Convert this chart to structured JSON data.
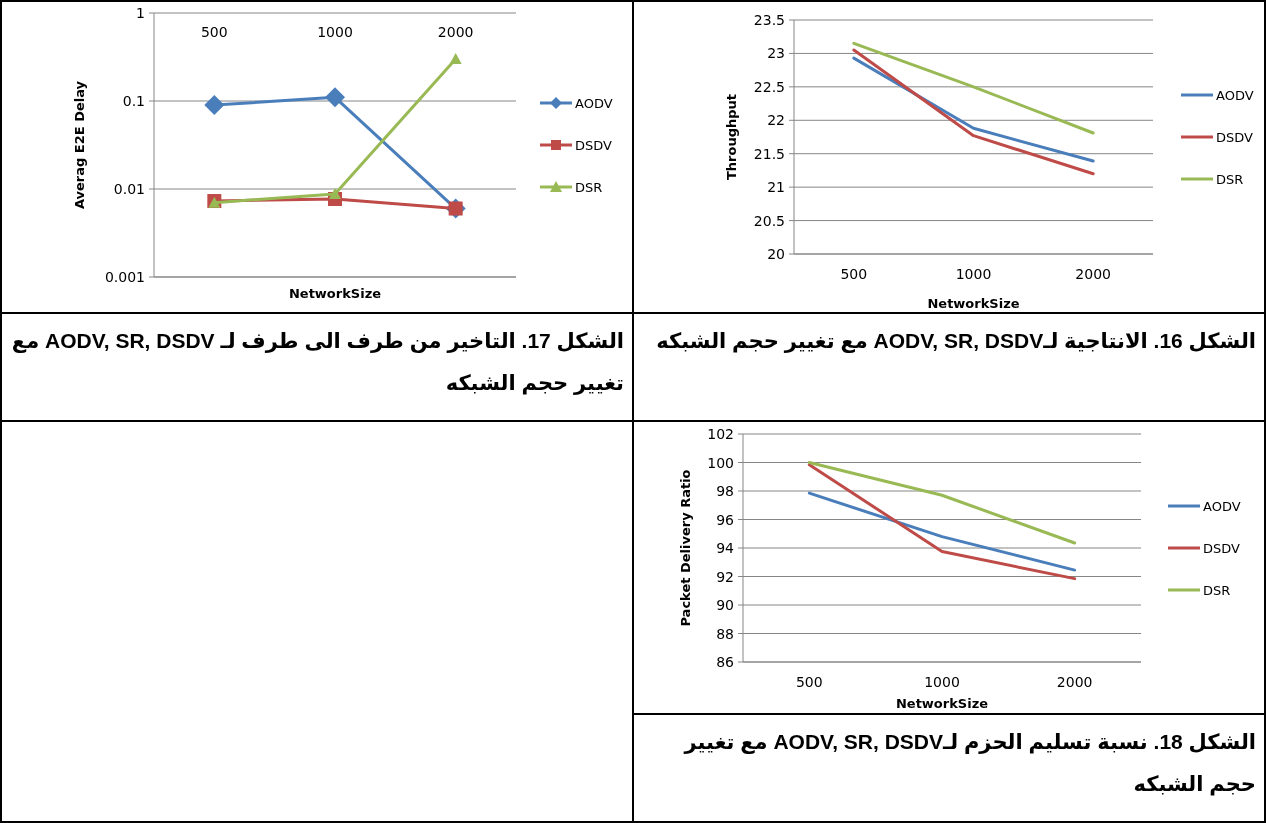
{
  "chart_data": [
    {
      "type": "line",
      "ylabel": "Averag E2E Delay",
      "xlabel": "NetworkSize",
      "categories": [
        "500",
        "1000",
        "2000"
      ],
      "log": "y",
      "ylim": [
        0.001,
        1
      ],
      "yticks": [
        0.001,
        0.01,
        0.1,
        1
      ],
      "grid": "y",
      "legend": "right",
      "series": [
        {
          "name": "AODV",
          "color": "#4a7ebb",
          "marker": "diamond",
          "values": [
            0.09,
            0.11,
            0.006
          ]
        },
        {
          "name": "DSDV",
          "color": "#be4b48",
          "marker": "square",
          "values": [
            0.0073,
            0.0077,
            0.006
          ]
        },
        {
          "name": "DSR",
          "color": "#98b954",
          "marker": "triangle",
          "values": [
            0.007,
            0.0088,
            0.3
          ]
        }
      ],
      "annotations": [
        "الشكل 17. التاخير من طرف الى طرف لـ  AODV, SR, DSDV مع تغيير حجم الشبكه"
      ]
    },
    {
      "type": "line",
      "ylabel": "Throughput",
      "xlabel": "NetworkSize",
      "categories": [
        "500",
        "1000",
        "2000"
      ],
      "ylim": [
        20,
        23.5
      ],
      "yticks": [
        20,
        20.5,
        21,
        21.5,
        22,
        22.5,
        23,
        23.5
      ],
      "grid": "y",
      "legend": "right",
      "series": [
        {
          "name": "AODV",
          "color": "#4a7ebb",
          "values": [
            22.93,
            21.88,
            21.39
          ]
        },
        {
          "name": "DSDV",
          "color": "#be4b48",
          "values": [
            23.05,
            21.77,
            21.2
          ]
        },
        {
          "name": "DSR",
          "color": "#98b954",
          "values": [
            23.15,
            22.5,
            21.81
          ]
        }
      ],
      "annotations": [
        "الشكل 16. الانتاجية لـAODV, SR,  DSDV مع تغيير حجم الشبكه"
      ]
    },
    {
      "type": "line",
      "ylabel": "Packet Delivery Ratio",
      "xlabel": "NetworkSize",
      "categories": [
        "500",
        "1000",
        "2000"
      ],
      "ylim": [
        86,
        102
      ],
      "yticks": [
        86,
        88,
        90,
        92,
        94,
        96,
        98,
        100,
        102
      ],
      "grid": "y",
      "legend": "right",
      "series": [
        {
          "name": "AODV",
          "color": "#4a7ebb",
          "values": [
            97.85,
            94.8,
            92.45
          ]
        },
        {
          "name": "DSDV",
          "color": "#be4b48",
          "values": [
            99.85,
            93.75,
            91.85
          ]
        },
        {
          "name": "DSR",
          "color": "#98b954",
          "values": [
            100,
            97.7,
            94.35
          ]
        }
      ],
      "annotations": [
        "الشكل 18. نسبة تسليم الحزم لـAODV, SR,  DSDV مع تغيير حجم الشبكه"
      ]
    }
  ]
}
